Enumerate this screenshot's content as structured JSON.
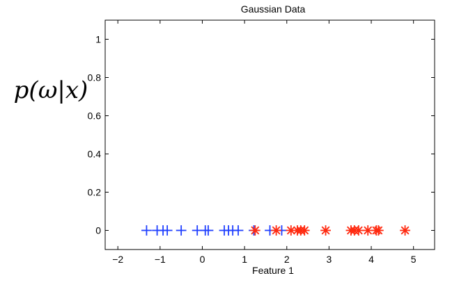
{
  "chart_data": {
    "type": "scatter",
    "title": "Gaussian Data",
    "xlabel": "Feature 1",
    "ylabel": "p(ω|x)",
    "xlim": [
      -2.3,
      5.5
    ],
    "ylim": [
      -0.1,
      1.1
    ],
    "xticks": [
      -2,
      -1,
      0,
      1,
      2,
      3,
      4,
      5
    ],
    "yticks": [
      0,
      0.2,
      0.4,
      0.6,
      0.8,
      1
    ],
    "grid": false,
    "series": [
      {
        "marker": "+",
        "color": "#1f3fff",
        "x": [
          -1.32,
          -1.07,
          -0.93,
          -0.83,
          -0.5,
          -0.12,
          0.07,
          0.14,
          0.52,
          0.62,
          0.72,
          0.85,
          1.22,
          1.6,
          1.88
        ],
        "y": [
          0,
          0,
          0,
          0,
          0,
          0,
          0,
          0,
          0,
          0,
          0,
          0,
          0,
          0,
          0
        ]
      },
      {
        "marker": "*",
        "color": "#ff2a10",
        "x": [
          1.25,
          1.75,
          2.1,
          2.25,
          2.33,
          2.42,
          2.92,
          3.52,
          3.6,
          3.7,
          3.92,
          4.12,
          4.17,
          4.8
        ],
        "y": [
          0,
          0,
          0,
          0,
          0,
          0,
          0,
          0,
          0,
          0,
          0,
          0,
          0,
          0
        ]
      }
    ]
  }
}
